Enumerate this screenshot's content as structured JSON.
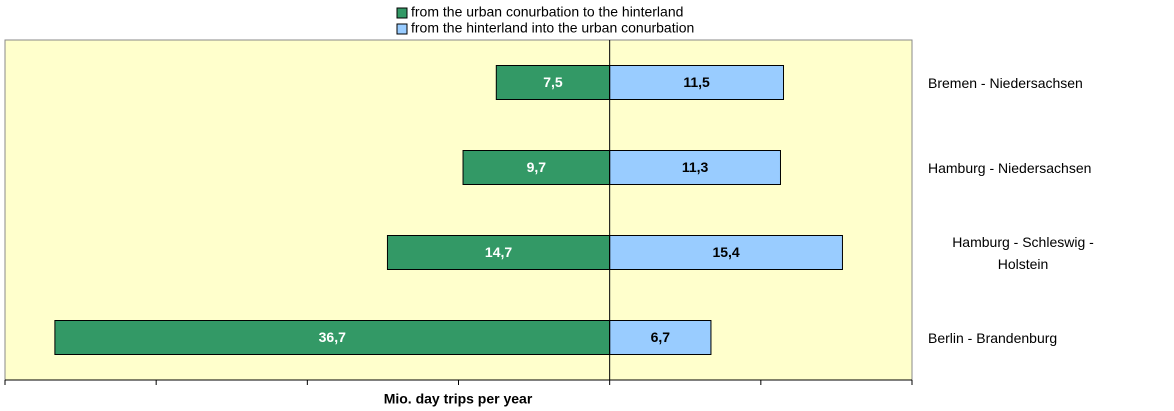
{
  "chart_data": {
    "type": "diverging-bar",
    "categories": [
      "Bremen - Niedersachsen",
      "Hamburg - Niedersachsen",
      "Hamburg - Schleswig - Holstein",
      "Berlin - Brandenburg"
    ],
    "series": [
      {
        "name": "from the urban conurbation to the hinterland",
        "color": "#339966",
        "values": [
          7.5,
          9.7,
          14.7,
          36.7
        ],
        "value_labels": [
          "7,5",
          "9,7",
          "14,7",
          "36,7"
        ]
      },
      {
        "name": "from the hinterland into the urban conurbation",
        "color": "#99ccff",
        "values": [
          11.5,
          11.3,
          15.4,
          6.7
        ],
        "value_labels": [
          "11,5",
          "11,3",
          "15,4",
          "6,7"
        ]
      }
    ],
    "xlabel": "Mio. day trips per year",
    "xlim": [
      -40,
      20
    ],
    "xticks": [
      -40,
      -30,
      -20,
      -10,
      0,
      10,
      20
    ]
  }
}
